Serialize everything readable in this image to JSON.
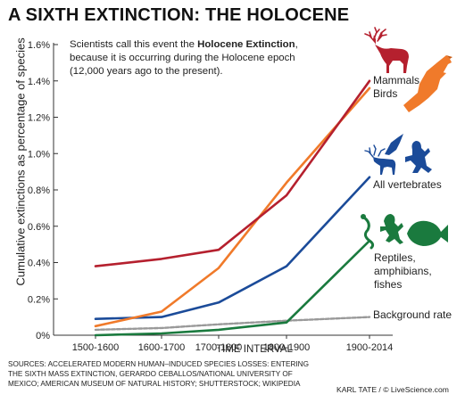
{
  "title": "A SIXTH EXTINCTION: THE HOLOCENE",
  "annotation": {
    "before": "Scientists call this event the ",
    "bold": "Holocene Extinction",
    "after": ", because it is occurring during the Holocene epoch (12,000 years ago to the present)."
  },
  "sources": "SOURCES: ACCELERATED MODERN HUMAN–INDUCED SPECIES LOSSES: ENTERING THE SIXTH MASS EXTINCTION, GERARDO CEBALLOS/NATIONAL UNIVERSITY OF MEXICO; AMERICAN MUSEUM OF NATURAL HISTORY; SHUTTERSTOCK; WIKIPEDIA",
  "credit": "KARL TATE / © LiveScience.com",
  "icons": [
    "deer-icon",
    "bird-icon",
    "vertebrates-icon",
    "reptiles-amphibians-fishes-icon"
  ],
  "chart_data": {
    "type": "line",
    "xlabel": "TIME INTERVAL",
    "ylabel": "Cumulative extinctions as percentage of species",
    "categories": [
      "1500-1600",
      "1600-1700",
      "1700-1800",
      "1800-1900",
      "1900-2014"
    ],
    "yticks": [
      "0%",
      "0.2%",
      "0.4%",
      "0.6%",
      "0.8%",
      "1.0%",
      "1.2%",
      "1.4%",
      "1.6%"
    ],
    "ylim": [
      0,
      1.6
    ],
    "grid": false,
    "series": [
      {
        "name": "Mammals",
        "color": "#b5202e",
        "values": [
          0.38,
          0.42,
          0.47,
          0.77,
          1.4
        ]
      },
      {
        "name": "Birds",
        "color": "#f07a2a",
        "values": [
          0.05,
          0.13,
          0.37,
          0.84,
          1.36
        ]
      },
      {
        "name": "All vertebrates",
        "color": "#1b4b99",
        "values": [
          0.09,
          0.1,
          0.18,
          0.38,
          0.87
        ]
      },
      {
        "name": "Reptiles, amphibians, fishes",
        "color": "#1a7a3e",
        "values": [
          0.0,
          0.01,
          0.03,
          0.07,
          0.52
        ]
      },
      {
        "name": "Background rate",
        "color": "#999999",
        "dashed": true,
        "values": [
          0.03,
          0.04,
          0.06,
          0.08,
          0.1
        ]
      }
    ]
  }
}
